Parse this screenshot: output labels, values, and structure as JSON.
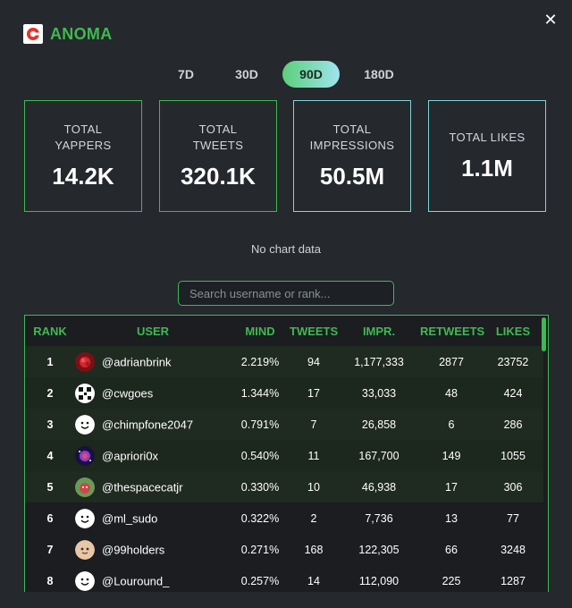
{
  "brand": {
    "name": "ANOMA"
  },
  "tabs": [
    {
      "label": "7D",
      "active": false
    },
    {
      "label": "30D",
      "active": false
    },
    {
      "label": "90D",
      "active": true
    },
    {
      "label": "180D",
      "active": false
    }
  ],
  "stats": [
    {
      "label": "TOTAL YAPPERS",
      "value": "14.2K"
    },
    {
      "label": "TOTAL TWEETS",
      "value": "320.1K"
    },
    {
      "label": "TOTAL IMPRESSIONS",
      "value": "50.5M"
    },
    {
      "label": "TOTAL LIKES",
      "value": "1.1M"
    }
  ],
  "chart": {
    "empty_text": "No chart data"
  },
  "search": {
    "placeholder": "Search username or rank..."
  },
  "table": {
    "headers": [
      "RANK",
      "USER",
      "MIND",
      "TWEETS",
      "IMPR.",
      "RETWEETS",
      "LIKES"
    ],
    "rows": [
      {
        "rank": "1",
        "user": "@adrianbrink",
        "mind": "2.219%",
        "tweets": "94",
        "impr": "1,177,333",
        "retweets": "2877",
        "likes": "23752",
        "avatar": "red-flower-avatar"
      },
      {
        "rank": "2",
        "user": "@cwgoes",
        "mind": "1.344%",
        "tweets": "17",
        "impr": "33,033",
        "retweets": "48",
        "likes": "424",
        "avatar": "qr-pattern-avatar"
      },
      {
        "rank": "3",
        "user": "@chimpfone2047",
        "mind": "0.791%",
        "tweets": "7",
        "impr": "26,858",
        "retweets": "6",
        "likes": "286",
        "avatar": "smiley-avatar"
      },
      {
        "rank": "4",
        "user": "@apriori0x",
        "mind": "0.540%",
        "tweets": "11",
        "impr": "167,700",
        "retweets": "149",
        "likes": "1055",
        "avatar": "nebula-avatar"
      },
      {
        "rank": "5",
        "user": "@thespacecatjr",
        "mind": "0.330%",
        "tweets": "10",
        "impr": "46,938",
        "retweets": "17",
        "likes": "306",
        "avatar": "cat-avatar"
      },
      {
        "rank": "6",
        "user": "@ml_sudo",
        "mind": "0.322%",
        "tweets": "2",
        "impr": "7,736",
        "retweets": "13",
        "likes": "77",
        "avatar": "smiley-avatar"
      },
      {
        "rank": "7",
        "user": "@99holders",
        "mind": "0.271%",
        "tweets": "168",
        "impr": "122,305",
        "retweets": "66",
        "likes": "3248",
        "avatar": "cartoon-face-avatar"
      },
      {
        "rank": "8",
        "user": "@Louround_",
        "mind": "0.257%",
        "tweets": "14",
        "impr": "112,090",
        "retweets": "225",
        "likes": "1287",
        "avatar": "smiley-avatar"
      }
    ]
  },
  "colors": {
    "accent": "#3fb950",
    "background": "#25282d",
    "teal": "#7fd6d8"
  }
}
